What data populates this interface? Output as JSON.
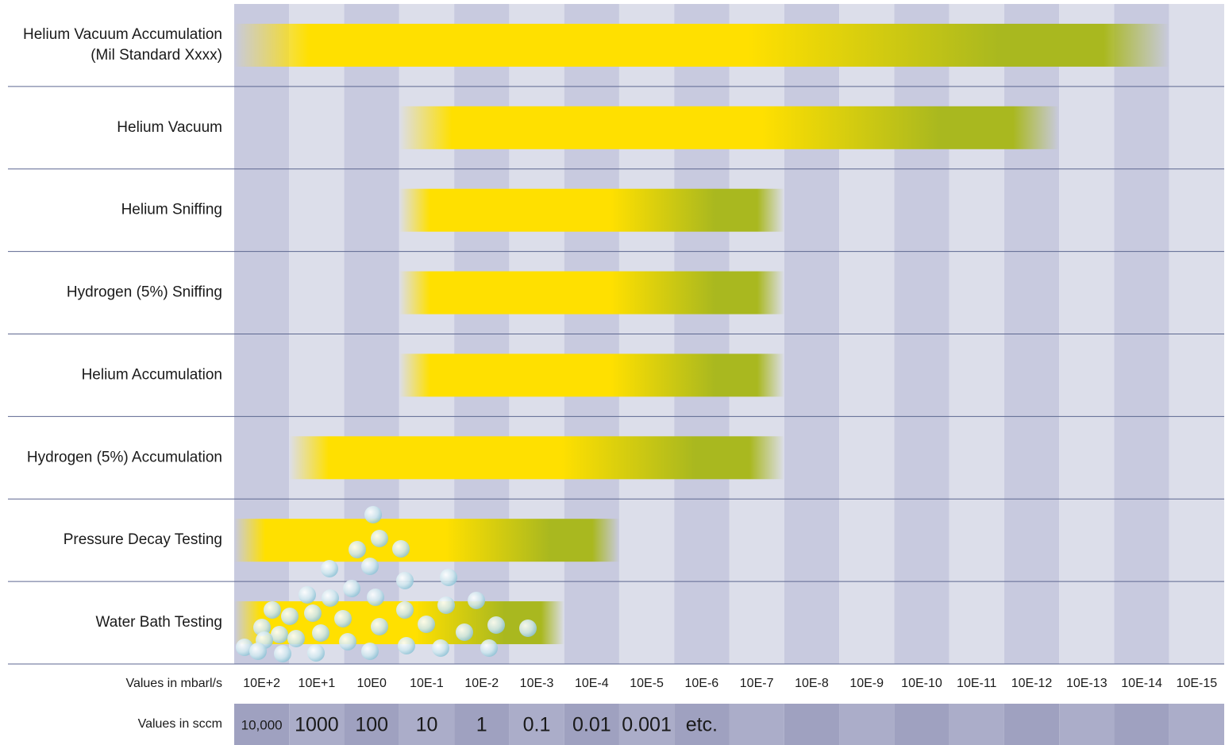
{
  "chart_data": {
    "type": "range",
    "categories": [
      [
        "Helium Vacuum Accumulation",
        "(Mil Standard Xxxx)"
      ],
      "Helium Vacuum",
      "Helium Sniffing",
      "Hydrogen (5%) Sniffing",
      "Helium Accumulation",
      "Hydrogen (5%) Accumulation",
      "Pressure Decay Testing",
      "Water Bath Testing"
    ],
    "values": [
      [
        2.5,
        -14.5
      ],
      [
        -0.5,
        -12.5
      ],
      [
        -0.5,
        -7.5
      ],
      [
        -0.5,
        -7.5
      ],
      [
        -0.5,
        -7.5
      ],
      [
        1.5,
        -7.5
      ],
      [
        2.5,
        -4.5
      ],
      [
        2.5,
        -3.5
      ]
    ],
    "xlabel": "Values in mbarl/s",
    "xlim": [
      2.5,
      -15.5
    ],
    "xticks": [
      {
        "value": 2,
        "label": "10E+2"
      },
      {
        "value": 1,
        "label": "10E+1"
      },
      {
        "value": 0,
        "label": "10E0"
      },
      {
        "value": -1,
        "label": "10E-1"
      },
      {
        "value": -2,
        "label": "10E-2"
      },
      {
        "value": -3,
        "label": "10E-3"
      },
      {
        "value": -4,
        "label": "10E-4"
      },
      {
        "value": -5,
        "label": "10E-5"
      },
      {
        "value": -6,
        "label": "10E-6"
      },
      {
        "value": -7,
        "label": "10E-7"
      },
      {
        "value": -8,
        "label": "10E-8"
      },
      {
        "value": -9,
        "label": "10E-9"
      },
      {
        "value": -10,
        "label": "10E-10"
      },
      {
        "value": -11,
        "label": "10E-11"
      },
      {
        "value": -12,
        "label": "10E-12"
      },
      {
        "value": -13,
        "label": "10E-13"
      },
      {
        "value": -14,
        "label": "10E-14"
      },
      {
        "value": -15,
        "label": "10E-15"
      }
    ],
    "sccm_label": "Values in sccm",
    "sccm_labels": [
      "10,000",
      "1000",
      "100",
      "10",
      "1",
      "0.1",
      "0.01",
      "0.001",
      "etc."
    ],
    "colors": {
      "start": "#ffe000",
      "end": "#a9b81f"
    }
  }
}
